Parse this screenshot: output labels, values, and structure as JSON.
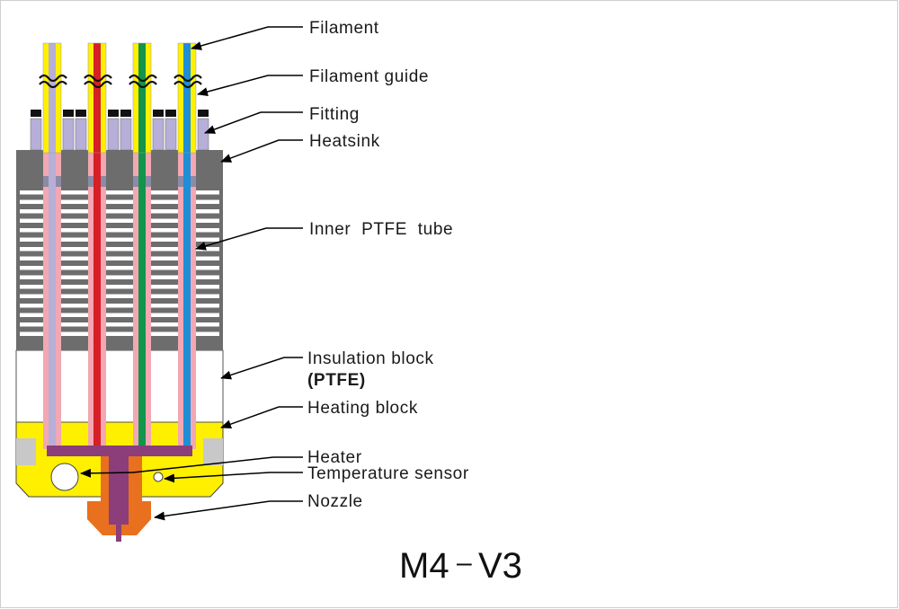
{
  "title": {
    "left": "M4",
    "dash": "–",
    "right": "V3"
  },
  "labels": {
    "filament": "Filament",
    "filament_guide": "Filament guide",
    "fitting": "Fitting",
    "heatsink": "Heatsink",
    "inner_ptfe_tube": "Inner  PTFE  tube",
    "insulation_block": "Insulation block",
    "insulation_block_material": "(PTFE)",
    "heating_block": "Heating block",
    "heater": "Heater",
    "temperature_sensor": "Temperature sensor",
    "nozzle": "Nozzle"
  },
  "colors": {
    "heatsink": "#6d6d6d",
    "fin_gap": "#ffffff",
    "tube": "#f2a7b2",
    "fitting": "#b7afd7",
    "guide": "#fff000",
    "heating_block": "#fff000",
    "heater": "#8b3e7a",
    "nozzle": "#e8701e",
    "sensor_groove": "#c8c8c8",
    "filament_1": "#b7afd7",
    "filament_2": "#d61f26",
    "filament_3": "#12944a",
    "filament_4": "#1e8ed6"
  }
}
